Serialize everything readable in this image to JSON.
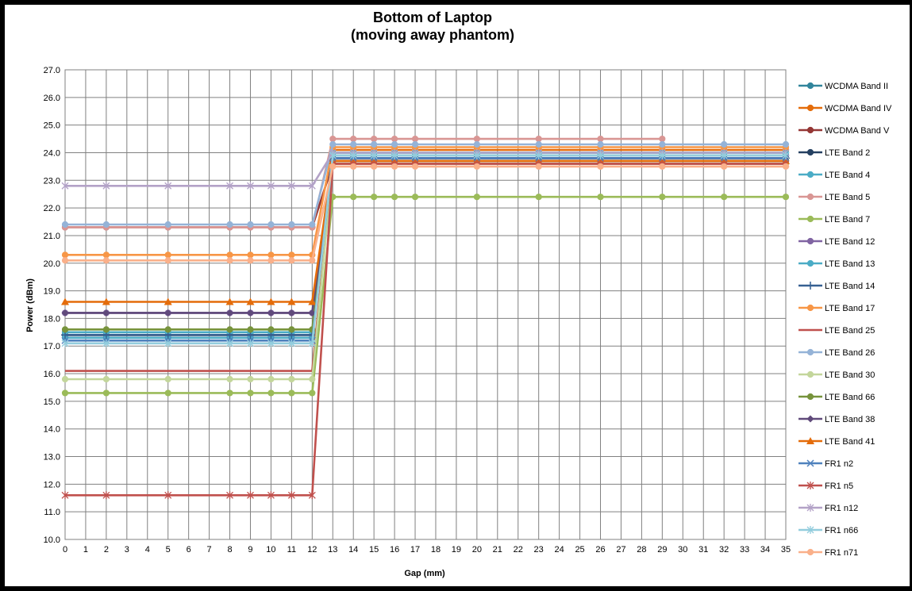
{
  "chart_data": {
    "type": "line",
    "title_lines": [
      "Bottom of Laptop",
      "(moving away phantom)"
    ],
    "xlabel": "Gap (mm)",
    "ylabel": "Power (dBm)",
    "x_ticks": [
      0,
      1,
      2,
      3,
      4,
      5,
      6,
      7,
      8,
      9,
      10,
      11,
      12,
      13,
      14,
      15,
      16,
      17,
      18,
      19,
      20,
      21,
      22,
      23,
      24,
      25,
      26,
      27,
      28,
      29,
      30,
      31,
      32,
      33,
      34,
      35
    ],
    "xlim": [
      0,
      35
    ],
    "ylim": [
      10,
      27
    ],
    "y_step": 1,
    "grid": true,
    "legend_position": "right",
    "x": [
      0,
      2,
      5,
      8,
      9,
      10,
      11,
      12,
      13,
      14,
      15,
      16,
      17,
      20,
      23,
      26,
      29,
      32,
      35
    ],
    "series": [
      {
        "name": "WCDMA Band II",
        "color": "#31859c",
        "marker": "circle",
        "values": [
          17.5,
          17.5,
          17.5,
          17.5,
          17.5,
          17.5,
          17.5,
          17.5,
          23.9,
          23.9,
          23.9,
          23.9,
          23.9,
          23.9,
          23.9,
          23.9,
          23.9,
          23.9,
          23.9
        ]
      },
      {
        "name": "WCDMA Band IV",
        "color": "#e46c0a",
        "marker": "circle",
        "values": [
          17.4,
          17.4,
          17.4,
          17.4,
          17.4,
          17.4,
          17.4,
          17.4,
          24.1,
          24.1,
          24.1,
          24.1,
          24.1,
          24.1,
          24.1,
          24.1,
          24.1,
          24.1,
          24.1
        ]
      },
      {
        "name": "WCDMA Band V",
        "color": "#953735",
        "marker": "circle",
        "values": [
          21.3,
          21.3,
          21.3,
          21.3,
          21.3,
          21.3,
          21.3,
          21.3,
          23.6,
          23.6,
          23.6,
          23.6,
          23.6,
          23.6,
          23.6,
          23.6,
          23.6,
          23.6,
          23.6
        ]
      },
      {
        "name": "LTE Band 2",
        "color": "#254061",
        "marker": "circle",
        "values": [
          17.4,
          17.4,
          17.4,
          17.4,
          17.4,
          17.4,
          17.4,
          17.4,
          23.8,
          23.8,
          23.8,
          23.8,
          23.8,
          23.8,
          23.8,
          23.8,
          23.8,
          23.8,
          23.8
        ]
      },
      {
        "name": "LTE Band 4",
        "color": "#4bacc6",
        "marker": "circle",
        "values": [
          17.5,
          17.5,
          17.5,
          17.5,
          17.5,
          17.5,
          17.5,
          17.5,
          24.0,
          24.0,
          24.0,
          24.0,
          24.0,
          24.0,
          24.0,
          24.0,
          24.0,
          24.0,
          24.0
        ]
      },
      {
        "name": "LTE Band 5",
        "color": "#d99694",
        "marker": "circle",
        "values": [
          21.3,
          21.3,
          21.3,
          21.3,
          21.3,
          21.3,
          21.3,
          21.3,
          24.5,
          24.5,
          24.5,
          24.5,
          24.5,
          24.5,
          24.5,
          24.5,
          24.5,
          null,
          null
        ]
      },
      {
        "name": "LTE Band 7",
        "color": "#9bbb59",
        "marker": "circle",
        "values": [
          15.3,
          15.3,
          15.3,
          15.3,
          15.3,
          15.3,
          15.3,
          15.3,
          22.4,
          22.4,
          22.4,
          22.4,
          22.4,
          22.4,
          22.4,
          22.4,
          22.4,
          22.4,
          22.4
        ]
      },
      {
        "name": "LTE Band 12",
        "color": "#8064a2",
        "marker": "circle",
        "values": [
          18.2,
          18.2,
          18.2,
          18.2,
          18.2,
          18.2,
          18.2,
          18.2,
          23.7,
          23.7,
          23.7,
          23.7,
          23.7,
          23.7,
          23.7,
          23.7,
          23.7,
          23.7,
          23.7
        ]
      },
      {
        "name": "LTE Band 13",
        "color": "#4bacc6",
        "marker": "circle",
        "values": [
          17.3,
          17.3,
          17.3,
          17.3,
          17.3,
          17.3,
          17.3,
          17.3,
          24.0,
          24.0,
          24.0,
          24.0,
          24.0,
          24.0,
          24.0,
          24.0,
          24.0,
          24.0,
          24.0
        ]
      },
      {
        "name": "LTE Band 14",
        "color": "#366092",
        "marker": "plus",
        "values": [
          17.4,
          17.4,
          17.4,
          17.4,
          17.4,
          17.4,
          17.4,
          17.4,
          23.8,
          23.8,
          23.8,
          23.8,
          23.8,
          23.8,
          23.8,
          23.8,
          23.8,
          23.8,
          23.8
        ]
      },
      {
        "name": "LTE Band 17",
        "color": "#f79646",
        "marker": "circle",
        "values": [
          20.3,
          20.3,
          20.3,
          20.3,
          20.3,
          20.3,
          20.3,
          20.3,
          24.2,
          24.2,
          24.2,
          24.2,
          24.2,
          24.2,
          24.2,
          24.2,
          24.2,
          24.2,
          24.2
        ]
      },
      {
        "name": "LTE Band 25",
        "color": "#c0504d",
        "marker": "none",
        "values": [
          16.1,
          16.1,
          16.1,
          16.1,
          16.1,
          16.1,
          16.1,
          16.1,
          23.6,
          23.6,
          23.6,
          23.6,
          23.6,
          23.6,
          23.6,
          23.6,
          23.6,
          23.6,
          23.6
        ]
      },
      {
        "name": "LTE Band 26",
        "color": "#95b3d7",
        "marker": "circle",
        "values": [
          21.4,
          21.4,
          21.4,
          21.4,
          21.4,
          21.4,
          21.4,
          21.4,
          24.3,
          24.3,
          24.3,
          24.3,
          24.3,
          24.3,
          24.3,
          24.3,
          24.3,
          24.3,
          24.3
        ]
      },
      {
        "name": "LTE Band 30",
        "color": "#c3d69b",
        "marker": "circle",
        "values": [
          15.8,
          15.8,
          15.8,
          15.8,
          15.8,
          15.8,
          15.8,
          15.8,
          23.6,
          23.6,
          23.6,
          23.6,
          23.6,
          23.6,
          23.6,
          23.6,
          23.6,
          23.6,
          23.6
        ]
      },
      {
        "name": "LTE Band 66",
        "color": "#77933c",
        "marker": "circle",
        "values": [
          17.6,
          17.6,
          17.6,
          17.6,
          17.6,
          17.6,
          17.6,
          17.6,
          23.7,
          23.7,
          23.7,
          23.7,
          23.7,
          23.7,
          23.7,
          23.7,
          23.7,
          23.7,
          23.7
        ]
      },
      {
        "name": "LTE Band 38",
        "color": "#604a7b",
        "marker": "diamond",
        "values": [
          18.2,
          18.2,
          18.2,
          18.2,
          18.2,
          18.2,
          18.2,
          18.2,
          23.8,
          23.8,
          23.8,
          23.8,
          23.8,
          23.8,
          23.8,
          23.8,
          23.8,
          23.8,
          23.8
        ]
      },
      {
        "name": "LTE Band 41",
        "color": "#e46c0a",
        "marker": "triangle",
        "values": [
          18.6,
          18.6,
          18.6,
          18.6,
          18.6,
          18.6,
          18.6,
          18.6,
          23.7,
          23.7,
          23.7,
          23.7,
          23.7,
          23.7,
          23.7,
          23.7,
          23.7,
          23.7,
          23.7
        ]
      },
      {
        "name": "FR1 n2",
        "color": "#4f81bd",
        "marker": "x",
        "values": [
          17.2,
          17.2,
          17.2,
          17.2,
          17.2,
          17.2,
          17.2,
          17.2,
          23.8,
          23.8,
          23.8,
          23.8,
          23.8,
          23.8,
          23.8,
          23.8,
          23.8,
          23.8,
          23.8
        ]
      },
      {
        "name": "FR1 n5",
        "color": "#c0504d",
        "marker": "star",
        "values": [
          11.6,
          11.6,
          11.6,
          11.6,
          11.6,
          11.6,
          11.6,
          11.6,
          23.6,
          23.6,
          23.6,
          23.6,
          23.6,
          23.6,
          23.6,
          23.6,
          23.6,
          23.6,
          23.6
        ]
      },
      {
        "name": "FR1 n12",
        "color": "#b3a2c7",
        "marker": "star",
        "values": [
          22.8,
          22.8,
          22.8,
          22.8,
          22.8,
          22.8,
          22.8,
          22.8,
          24.0,
          24.0,
          24.0,
          24.0,
          24.0,
          24.0,
          24.0,
          24.0,
          24.0,
          24.0,
          24.0
        ]
      },
      {
        "name": "FR1 n66",
        "color": "#93cddd",
        "marker": "star",
        "values": [
          17.1,
          17.1,
          17.1,
          17.1,
          17.1,
          17.1,
          17.1,
          17.1,
          23.9,
          23.9,
          23.9,
          23.9,
          23.9,
          23.9,
          23.9,
          23.9,
          23.9,
          23.9,
          23.9
        ]
      },
      {
        "name": "FR1 n71",
        "color": "#fab08a",
        "marker": "circle",
        "values": [
          20.1,
          20.1,
          20.1,
          20.1,
          20.1,
          20.1,
          20.1,
          20.1,
          23.5,
          23.5,
          23.5,
          23.5,
          23.5,
          23.5,
          23.5,
          23.5,
          23.5,
          23.5,
          23.5
        ]
      }
    ]
  }
}
